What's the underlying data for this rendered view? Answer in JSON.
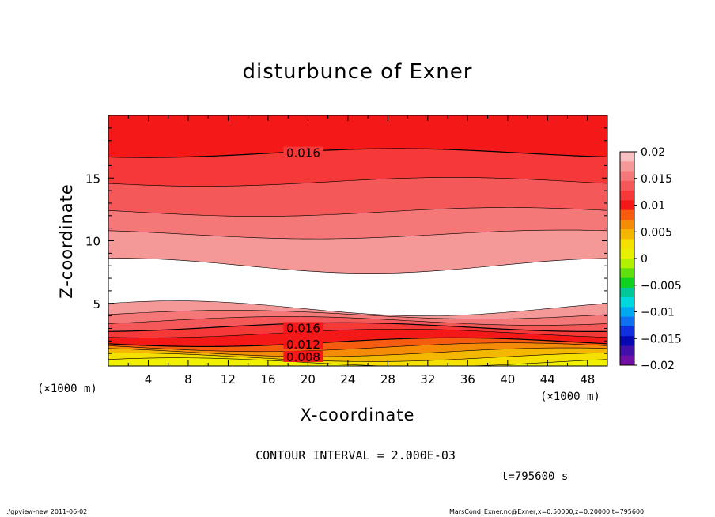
{
  "page": {
    "title": "disturbunce of Exner",
    "contour_interval": "CONTOUR INTERVAL = 2.000E-03",
    "timestamp": "t=795600 s",
    "footer_left": "./gpview-new   2011-06-02",
    "footer_right": "MarsCond_Exner.nc@Exner,x=0:50000,z=0:20000,t=795600"
  },
  "chart_data": {
    "type": "heatmap",
    "title": "disturbunce of Exner",
    "xlabel": "X-coordinate",
    "ylabel": "Z-coordinate",
    "x_unit_label": "(×1000 m)",
    "xlim": [
      0,
      50
    ],
    "ylim": [
      0,
      20
    ],
    "x_ticks": [
      "4",
      "8",
      "12",
      "16",
      "20",
      "24",
      "28",
      "32",
      "36",
      "40",
      "44",
      "48"
    ],
    "y_ticks": [
      "5",
      "10",
      "15"
    ],
    "contour_interval": 0.002,
    "contour_labels": [
      "0.016",
      "0.016",
      "0.012",
      "0.008"
    ],
    "colorbar": {
      "ticks": [
        "0.02",
        "0.015",
        "0.01",
        "0.005",
        "0",
        "−0.005",
        "−0.01",
        "−0.015",
        "−0.02"
      ],
      "levels_top_to_bottom": [
        "#f8c0c0",
        "#f59898",
        "#f57878",
        "#f55858",
        "#f53838",
        "#f51818",
        "#f55c10",
        "#f58c08",
        "#f5b800",
        "#f5e000",
        "#e8f000",
        "#b0f000",
        "#60e010",
        "#10d020",
        "#00c898",
        "#00d8e0",
        "#00a8f0",
        "#1070f0",
        "#1030e0",
        "#0808b0",
        "#4010a8",
        "#7010a8"
      ]
    },
    "bands": [
      {
        "from": 0.0,
        "to": 0.3,
        "color": "#f0f000"
      },
      {
        "from": 0.3,
        "to": 0.7,
        "color": "#f5e000"
      },
      {
        "from": 0.7,
        "to": 1.1,
        "color": "#f5b800"
      },
      {
        "from": 1.1,
        "to": 1.5,
        "color": "#f58c08"
      },
      {
        "from": 1.5,
        "to": 1.9,
        "color": "#f55c10"
      },
      {
        "from": 1.9,
        "to": 2.6,
        "color": "#f51818"
      },
      {
        "from": 2.6,
        "to": 3.1,
        "color": "#f53838"
      },
      {
        "from": 3.1,
        "to": 3.6,
        "color": "#f55858"
      },
      {
        "from": 3.6,
        "to": 4.1,
        "color": "#f57878"
      },
      {
        "from": 4.1,
        "to": 4.6,
        "color": "#f59898"
      },
      {
        "from": 4.6,
        "to": 8.0,
        "color": "#ffffff"
      },
      {
        "from": 8.0,
        "to": 10.5,
        "color": "#f59898"
      },
      {
        "from": 10.5,
        "to": 12.3,
        "color": "#f57878"
      },
      {
        "from": 12.3,
        "to": 14.7,
        "color": "#f55858"
      },
      {
        "from": 14.7,
        "to": 17.0,
        "color": "#f53838"
      },
      {
        "from": 17.0,
        "to": 20.0,
        "color": "#f51818"
      }
    ]
  }
}
